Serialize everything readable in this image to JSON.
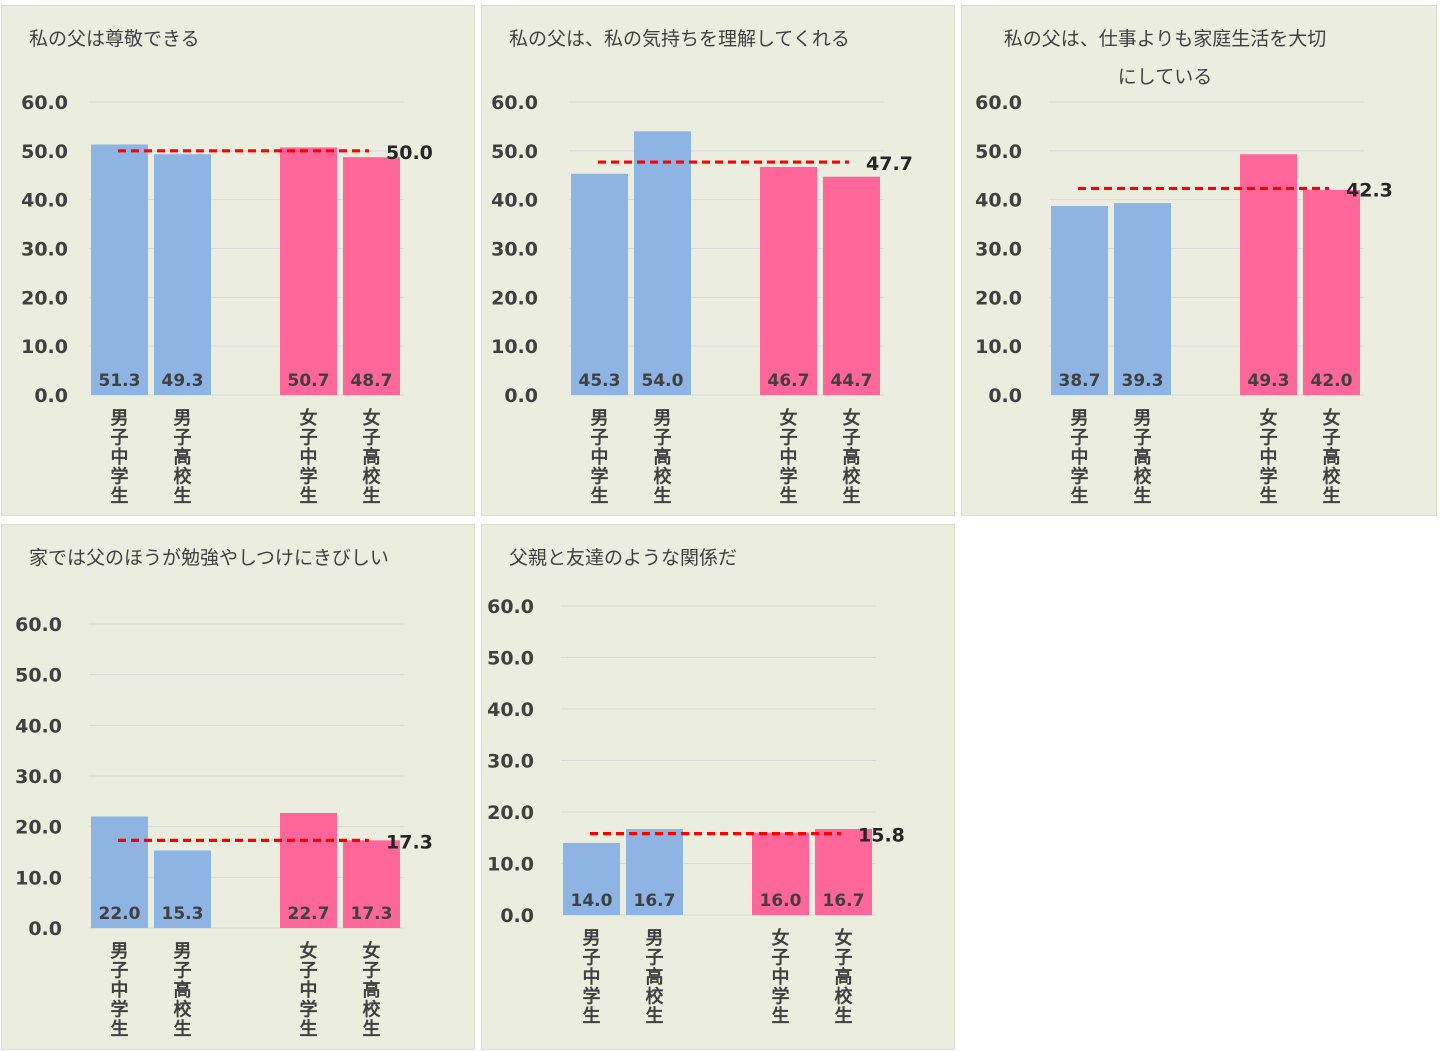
{
  "colors": {
    "boys": "#8eb4e3",
    "girls": "#ff6699",
    "reference": "#ff0000",
    "grid": "#d9d9d9"
  },
  "chart_data": [
    {
      "type": "bar",
      "title": "私の父は尊敬できる",
      "categories": [
        "男子中学生",
        "男子高校生",
        "女子中学生",
        "女子高校生"
      ],
      "values": [
        51.3,
        49.3,
        50.7,
        48.7
      ],
      "value_labels": [
        "51.3",
        "49.3",
        "50.7",
        "48.7"
      ],
      "reference_value": 50.0,
      "reference_label": "50.0",
      "yticks": [
        "0.0",
        "10.0",
        "20.0",
        "30.0",
        "40.0",
        "50.0",
        "60.0"
      ],
      "ylim": [
        0,
        60
      ],
      "grid": true
    },
    {
      "type": "bar",
      "title": "私の父は、私の気持ちを理解してくれる",
      "categories": [
        "男子中学生",
        "男子高校生",
        "女子中学生",
        "女子高校生"
      ],
      "values": [
        45.3,
        54.0,
        46.7,
        44.7
      ],
      "value_labels": [
        "45.3",
        "54.0",
        "46.7",
        "44.7"
      ],
      "reference_value": 47.7,
      "reference_label": "47.7",
      "yticks": [
        "0.0",
        "10.0",
        "20.0",
        "30.0",
        "40.0",
        "50.0",
        "60.0"
      ],
      "ylim": [
        0,
        60
      ],
      "grid": true
    },
    {
      "type": "bar",
      "title": "私の父は、仕事よりも家庭生活を大切\nにしている",
      "categories": [
        "男子中学生",
        "男子高校生",
        "女子中学生",
        "女子高校生"
      ],
      "values": [
        38.7,
        39.3,
        49.3,
        42.0
      ],
      "value_labels": [
        "38.7",
        "39.3",
        "49.3",
        "42.0"
      ],
      "reference_value": 42.3,
      "reference_label": "42.3",
      "yticks": [
        "0.0",
        "10.0",
        "20.0",
        "30.0",
        "40.0",
        "50.0",
        "60.0"
      ],
      "ylim": [
        0,
        60
      ],
      "grid": true
    },
    {
      "type": "bar",
      "title": "家では父のほうが勉強やしつけにきびしい",
      "categories": [
        "男子中学生",
        "男子高校生",
        "女子中学生",
        "女子高校生"
      ],
      "values": [
        22.0,
        15.3,
        22.7,
        17.3
      ],
      "value_labels": [
        "22.0",
        "15.3",
        "22.7",
        "17.3"
      ],
      "reference_value": 17.3,
      "reference_label": "17.3",
      "yticks": [
        "0.0",
        "10.0",
        "20.0",
        "30.0",
        "40.0",
        "50.0",
        "60.0"
      ],
      "ylim": [
        0,
        60
      ],
      "grid": true
    },
    {
      "type": "bar",
      "title": "父親と友達のような関係だ",
      "categories": [
        "男子中学生",
        "男子高校生",
        "女子中学生",
        "女子高校生"
      ],
      "values": [
        14.0,
        16.7,
        16.0,
        16.7
      ],
      "value_labels": [
        "14.0",
        "16.7",
        "16.0",
        "16.7"
      ],
      "reference_value": 15.8,
      "reference_label": "15.8",
      "yticks": [
        "0.0",
        "10.0",
        "20.0",
        "30.0",
        "40.0",
        "50.0",
        "60.0"
      ],
      "ylim": [
        0,
        60
      ],
      "grid": true
    }
  ]
}
